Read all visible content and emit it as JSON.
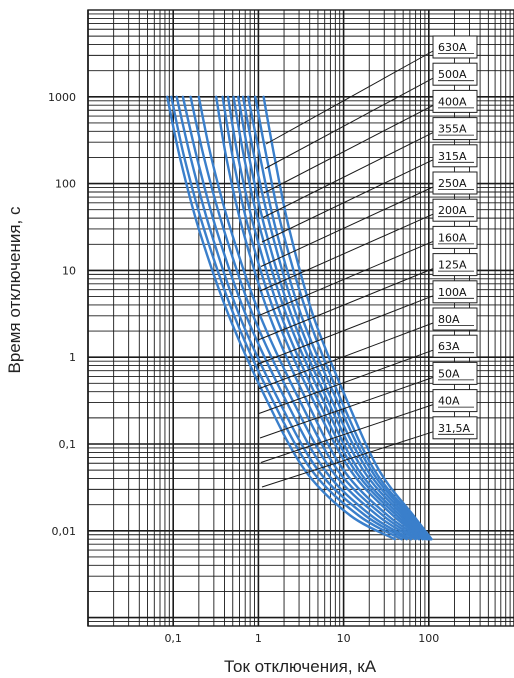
{
  "chart_data": {
    "type": "line",
    "x_scale": "log",
    "y_scale": "log",
    "xlabel": "Ток отключения, кА",
    "ylabel": "Время отключения, с",
    "xlim": [
      0.01,
      1000
    ],
    "ylim": [
      0.0008,
      10000
    ],
    "grid": true,
    "x_ticks": [
      {
        "value": 0.1,
        "label": "0,1"
      },
      {
        "value": 1,
        "label": "1"
      },
      {
        "value": 10,
        "label": "10"
      },
      {
        "value": 100,
        "label": "100"
      }
    ],
    "y_ticks": [
      {
        "value": 1000,
        "label": "1000"
      },
      {
        "value": 100,
        "label": "100"
      },
      {
        "value": 10,
        "label": "10"
      },
      {
        "value": 1,
        "label": "1"
      },
      {
        "value": 0.1,
        "label": "0,1"
      },
      {
        "value": 0.01,
        "label": "0,01"
      }
    ],
    "colors": {
      "curve": "#3a7fcb",
      "grid": "#1a1a1a",
      "leader": "#1a1a1a"
    },
    "series": [
      {
        "name": "31,5A",
        "x": [
          0.085,
          0.12,
          0.2,
          0.45,
          1.2,
          3.5,
          12,
          40
        ],
        "y": [
          1000,
          200,
          30,
          3,
          0.35,
          0.05,
          0.015,
          0.008
        ]
      },
      {
        "name": "40A",
        "x": [
          0.095,
          0.135,
          0.23,
          0.52,
          1.4,
          4.2,
          15,
          48
        ],
        "y": [
          1000,
          200,
          30,
          3,
          0.35,
          0.05,
          0.015,
          0.008
        ]
      },
      {
        "name": "50A",
        "x": [
          0.11,
          0.16,
          0.27,
          0.6,
          1.65,
          5,
          18,
          55
        ],
        "y": [
          1000,
          200,
          30,
          3,
          0.35,
          0.05,
          0.015,
          0.008
        ]
      },
      {
        "name": "63A",
        "x": [
          0.13,
          0.19,
          0.32,
          0.72,
          2,
          6,
          21,
          62
        ],
        "y": [
          1000,
          200,
          30,
          3,
          0.35,
          0.05,
          0.015,
          0.008
        ]
      },
      {
        "name": "80A",
        "x": [
          0.16,
          0.23,
          0.39,
          0.87,
          2.4,
          7.2,
          25,
          70
        ],
        "y": [
          1000,
          200,
          30,
          3,
          0.35,
          0.05,
          0.015,
          0.008
        ]
      },
      {
        "name": "100A",
        "x": [
          0.2,
          0.28,
          0.47,
          1.05,
          2.9,
          8.5,
          29,
          77
        ],
        "y": [
          1000,
          200,
          30,
          3,
          0.35,
          0.05,
          0.015,
          0.008
        ]
      },
      {
        "name": "125A",
        "x": [
          0.32,
          0.42,
          0.65,
          1.35,
          3.5,
          10,
          33,
          85
        ],
        "y": [
          1000,
          200,
          30,
          3,
          0.35,
          0.05,
          0.015,
          0.008
        ]
      },
      {
        "name": "160A",
        "x": [
          0.38,
          0.5,
          0.77,
          1.6,
          4.2,
          12,
          38,
          90
        ],
        "y": [
          1000,
          200,
          30,
          3,
          0.35,
          0.05,
          0.015,
          0.008
        ]
      },
      {
        "name": "200A",
        "x": [
          0.44,
          0.58,
          0.9,
          1.85,
          4.8,
          13.5,
          42,
          95
        ],
        "y": [
          1000,
          200,
          30,
          3,
          0.35,
          0.05,
          0.015,
          0.008
        ]
      },
      {
        "name": "250A",
        "x": [
          0.51,
          0.68,
          1.05,
          2.15,
          5.5,
          15,
          46,
          98
        ],
        "y": [
          1000,
          200,
          30,
          3,
          0.35,
          0.05,
          0.015,
          0.008
        ]
      },
      {
        "name": "315A",
        "x": [
          0.58,
          0.78,
          1.2,
          2.45,
          6.2,
          17,
          50,
          100
        ],
        "y": [
          1000,
          200,
          30,
          3,
          0.35,
          0.05,
          0.015,
          0.008
        ]
      },
      {
        "name": "355A",
        "x": [
          0.66,
          0.9,
          1.4,
          2.8,
          7,
          19,
          54,
          102
        ],
        "y": [
          1000,
          200,
          30,
          3,
          0.35,
          0.05,
          0.015,
          0.008
        ]
      },
      {
        "name": "400A",
        "x": [
          0.76,
          1.05,
          1.6,
          3.2,
          8,
          21,
          58,
          104
        ],
        "y": [
          1000,
          200,
          30,
          3,
          0.35,
          0.05,
          0.015,
          0.008
        ]
      },
      {
        "name": "500A",
        "x": [
          0.92,
          1.25,
          1.9,
          3.8,
          9,
          23,
          62,
          106
        ],
        "y": [
          1000,
          200,
          30,
          3,
          0.35,
          0.05,
          0.015,
          0.008
        ]
      },
      {
        "name": "630A",
        "x": [
          1.15,
          1.55,
          2.3,
          4.4,
          10.5,
          26,
          66,
          108
        ],
        "y": [
          1000,
          200,
          30,
          3,
          0.35,
          0.05,
          0.015,
          0.008
        ]
      }
    ]
  }
}
